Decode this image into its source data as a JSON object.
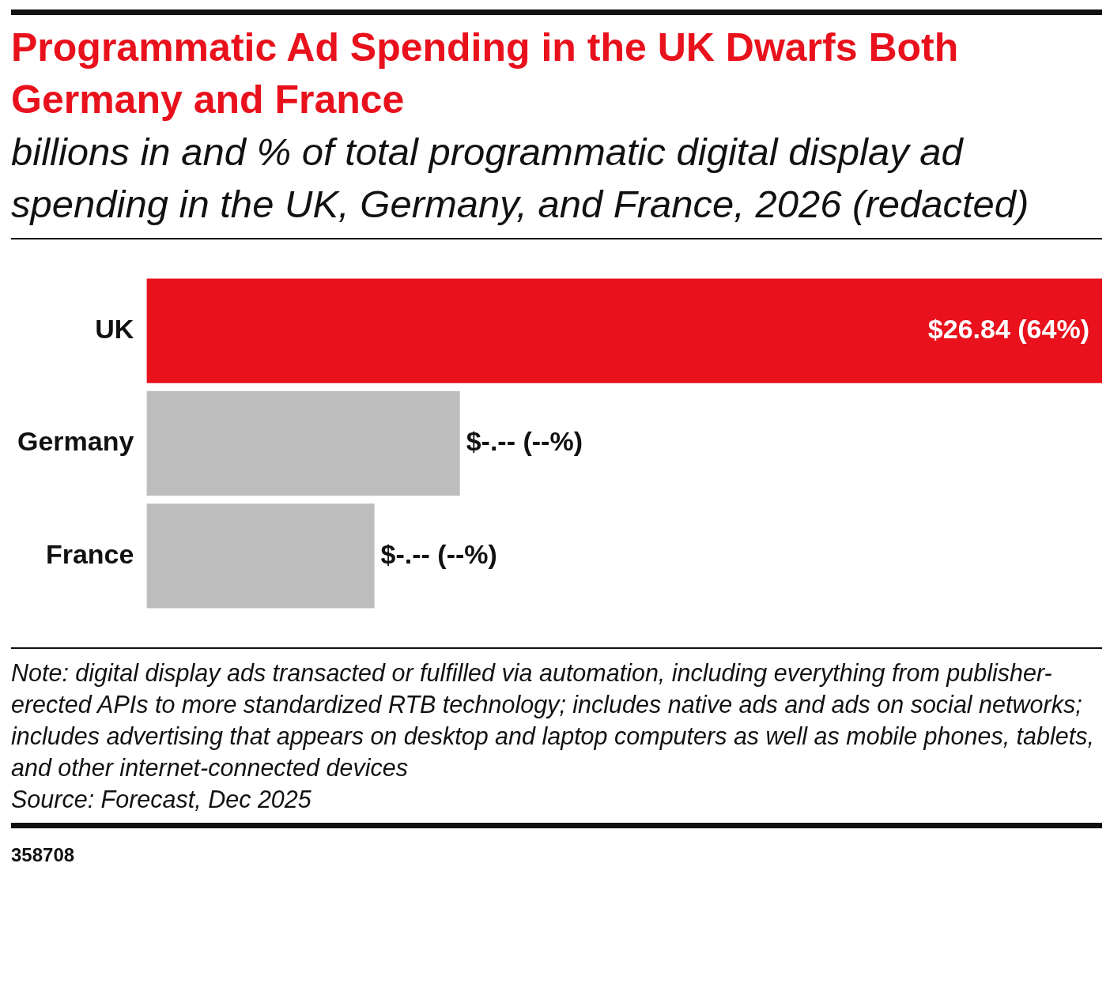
{
  "chart_data": {
    "type": "bar",
    "orientation": "horizontal",
    "title": "Programmatic Ad Spending in the UK Dwarfs Both Germany and France",
    "subtitle": "billions in and % of total programmatic digital display ad spending in the UK, Germany, and France, 2026 (redacted)",
    "categories": [
      "UK",
      "Germany",
      "France"
    ],
    "values": [
      26.84,
      8.8,
      6.4
    ],
    "xlim": [
      0,
      26.84
    ],
    "colors": [
      "#e8111c",
      "#bdbdbd",
      "#bdbdbd"
    ],
    "value_labels": [
      "$26.84 (64%)",
      "$-.-- (--%)",
      "$-.-- (--%)"
    ],
    "tick_labels": "y",
    "legend": false,
    "annotations": [
      "Note: digital display ads transacted or fulfilled via automation, including everything from publisher-erected APIs to more standardized RTB technology; includes native ads and ads on social networks; includes advertising that appears on desktop and laptop computers as well as mobile phones, tablets, and other internet-connected devices",
      "Source: Forecast, Dec 2025",
      "358708"
    ]
  }
}
